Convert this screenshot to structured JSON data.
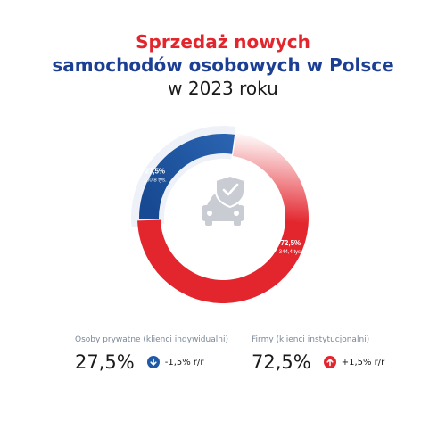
{
  "title": {
    "line1": "Sprzedaż nowych",
    "line2": "samochodów osobowych w Polsce",
    "line3": "w 2023 roku"
  },
  "center_icon": "car-with-shield-check-icon",
  "chart_data": {
    "type": "pie",
    "style": "donut",
    "slices": [
      {
        "label": "27,5%",
        "sublabel": "130,8 tys.",
        "value": 27.5,
        "color": "#1f5aa6"
      },
      {
        "label": "72,5%",
        "sublabel": "344,4 tys.",
        "value": 72.5,
        "color": "#e3262e"
      }
    ]
  },
  "stats": {
    "private": {
      "label": "Osoby prywatne (klienci indywidualni)",
      "value": "27,5%",
      "change": "-1,5% r/r",
      "direction": "down",
      "icon": "arrow-down-icon",
      "color": "#1f5aa6"
    },
    "business": {
      "label": "Firmy (klienci instytucjonalni)",
      "value": "72,5%",
      "change": "+1,5% r/r",
      "direction": "up",
      "icon": "arrow-up-icon",
      "color": "#e3262e"
    }
  }
}
